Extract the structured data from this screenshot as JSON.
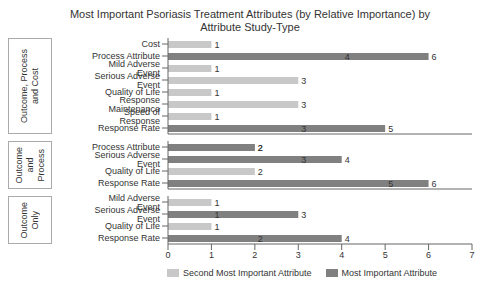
{
  "chart_data": [
    {
      "type": "bar",
      "orientation": "horizontal",
      "title": "Most Important Psoriasis Treatment Attributes (by Relative Importance) by\nAttribute Study-Type",
      "ylabel": "Outcome, Process\nand Cost",
      "categories": [
        "Cost",
        "Process Attribute",
        "Mild Adverse Event",
        "Serious Adverse Event",
        "Quality of Life",
        "Response Maintenance",
        "Speed of Response",
        "Response Rate"
      ],
      "series": [
        {
          "name": "Second Most Important Attribute",
          "color": "#c8c8c8",
          "values": [
            1,
            4,
            1,
            3,
            1,
            3,
            1,
            3
          ]
        },
        {
          "name": "Most Important Attribute",
          "color": "#808080",
          "values": [
            0,
            6,
            0,
            0,
            0,
            0,
            0,
            5
          ]
        }
      ],
      "xlim": [
        0,
        7
      ],
      "tick_labels": "y",
      "data_labels": true,
      "grid": false
    },
    {
      "type": "bar",
      "orientation": "horizontal",
      "ylabel": "Outcome\nand\nProcess",
      "categories": [
        "Process Attribute",
        "Serious Adverse Event",
        "Quality of Life",
        "Response Rate"
      ],
      "series": [
        {
          "name": "Second Most Important Attribute",
          "color": "#c8c8c8",
          "values": [
            2,
            3,
            2,
            5
          ]
        },
        {
          "name": "Most Important Attribute",
          "color": "#808080",
          "values": [
            2,
            4,
            0,
            6
          ]
        }
      ],
      "xlim": [
        0,
        7
      ],
      "tick_labels": "y",
      "data_labels": true,
      "grid": false
    },
    {
      "type": "bar",
      "orientation": "horizontal",
      "ylabel": "Outcome\nOnly",
      "categories": [
        "Mild Adverse Event",
        "Serious Adverse Event",
        "Quality of Life",
        "Response Rate"
      ],
      "series": [
        {
          "name": "Second Most Important Attribute",
          "color": "#c8c8c8",
          "values": [
            1,
            1,
            1,
            2
          ]
        },
        {
          "name": "Most Important Attribute",
          "color": "#808080",
          "values": [
            0,
            3,
            0,
            4
          ]
        }
      ],
      "xlim": [
        0,
        7
      ],
      "xticks": [
        0,
        1,
        2,
        3,
        4,
        5,
        6,
        7
      ],
      "data_labels": true,
      "grid": false,
      "legend": "bottom"
    }
  ]
}
